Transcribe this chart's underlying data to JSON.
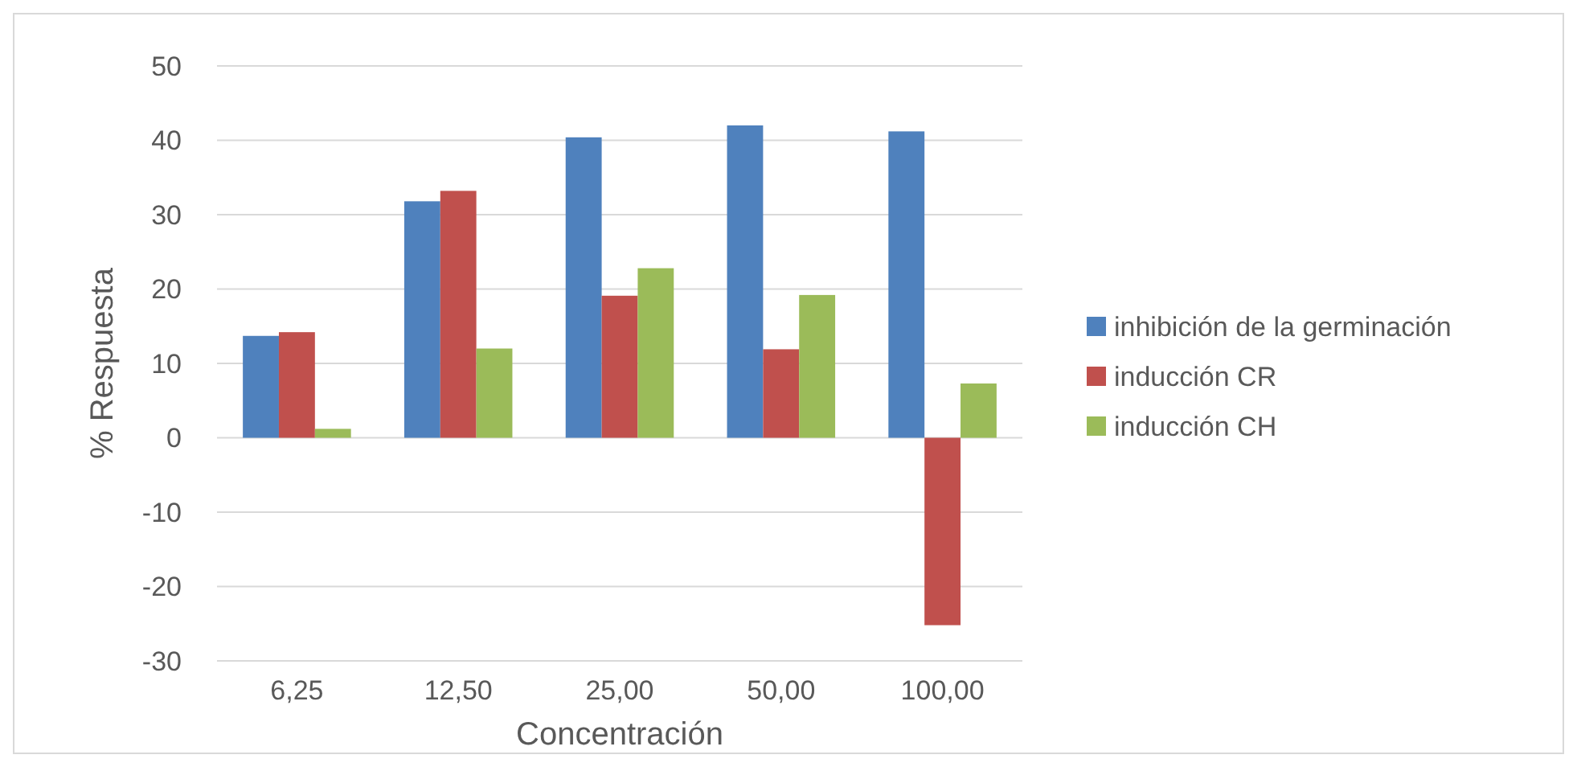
{
  "chart_data": {
    "type": "bar",
    "xlabel": "Concentración",
    "ylabel": "% Respuesta",
    "categories": [
      "6,25",
      "12,50",
      "25,00",
      "50,00",
      "100,00"
    ],
    "series": [
      {
        "name": "inhibición de la germinación",
        "color": "#4f81bd",
        "values": [
          13.7,
          31.8,
          40.4,
          42.0,
          41.2
        ]
      },
      {
        "name": "inducción CR",
        "color": "#c0504d",
        "values": [
          14.2,
          33.2,
          19.1,
          11.9,
          -25.2
        ]
      },
      {
        "name": "inducción CH",
        "color": "#9bbb59",
        "values": [
          1.2,
          12.0,
          22.8,
          19.2,
          7.3
        ]
      }
    ],
    "ylim": [
      -30,
      50
    ],
    "yticks": [
      -30,
      -20,
      -10,
      0,
      10,
      20,
      30,
      40,
      50
    ],
    "grid": "y",
    "legend": "right"
  }
}
